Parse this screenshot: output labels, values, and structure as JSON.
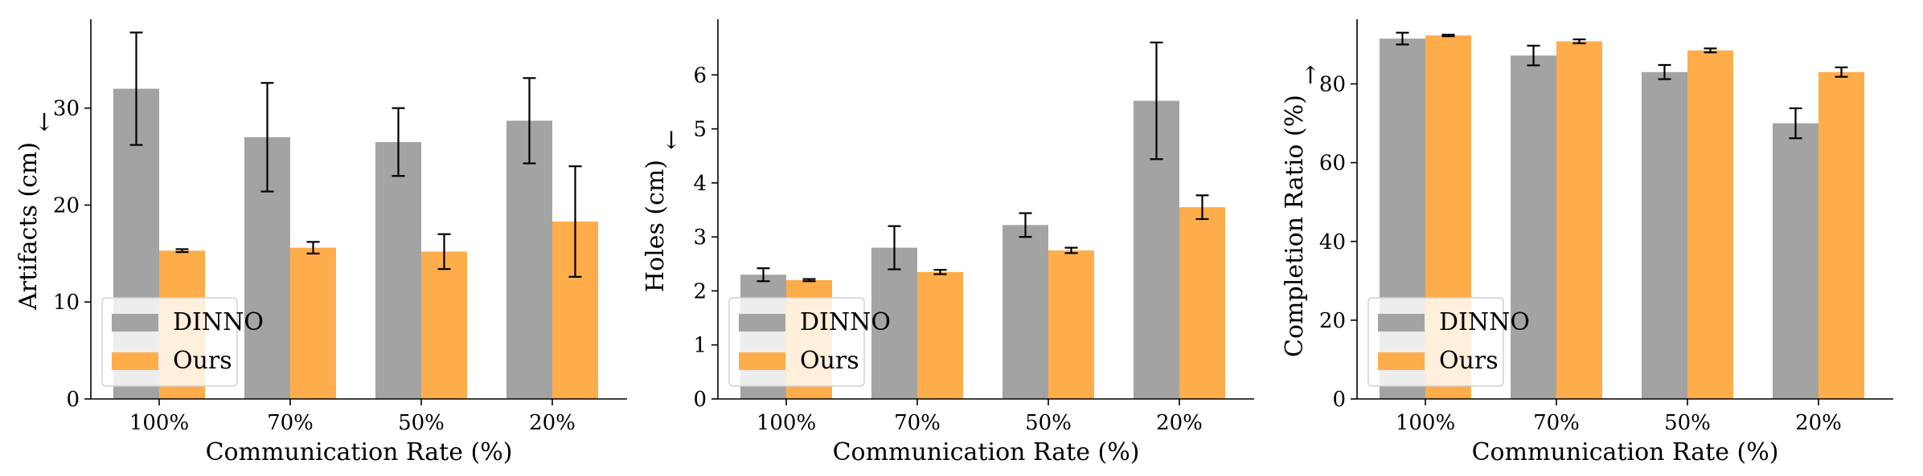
{
  "figure": "three-panel grouped bar chart comparing DINNO and Ours",
  "colors": {
    "DINNO": "#a3a3a3",
    "Ours": "#ffad4a",
    "errorbar": "#000000",
    "axis": "#000000"
  },
  "chart_data": [
    {
      "type": "bar",
      "xlabel": "Communication Rate (%)",
      "ylabel": "Artifacts (cm)",
      "arrow": "↓",
      "categories": [
        "100%",
        "70%",
        "50%",
        "20%"
      ],
      "ylim": [
        0,
        39
      ],
      "yticks": [
        0,
        10,
        20,
        30
      ],
      "legend_position": "lower-left",
      "series": [
        {
          "name": "DINNO",
          "values": [
            32.0,
            27.0,
            26.5,
            28.7
          ],
          "errors": [
            5.8,
            5.6,
            3.5,
            4.4
          ]
        },
        {
          "name": "Ours",
          "values": [
            15.3,
            15.6,
            15.2,
            18.3
          ],
          "errors": [
            0.15,
            0.6,
            1.8,
            5.7
          ]
        }
      ]
    },
    {
      "type": "bar",
      "xlabel": "Communication Rate (%)",
      "ylabel": "Holes (cm)",
      "arrow": "↓",
      "categories": [
        "100%",
        "70%",
        "50%",
        "20%"
      ],
      "ylim": [
        0,
        7
      ],
      "yticks": [
        0,
        1,
        2,
        3,
        4,
        5,
        6
      ],
      "legend_position": "lower-left",
      "series": [
        {
          "name": "DINNO",
          "values": [
            2.3,
            2.8,
            3.22,
            5.52
          ],
          "errors": [
            0.12,
            0.4,
            0.22,
            1.08
          ]
        },
        {
          "name": "Ours",
          "values": [
            2.2,
            2.35,
            2.75,
            3.55
          ],
          "errors": [
            0.02,
            0.04,
            0.05,
            0.22
          ]
        }
      ]
    },
    {
      "type": "bar",
      "xlabel": "Communication Rate (%)",
      "ylabel": "Completion Ratio (%)",
      "arrow": "↑",
      "categories": [
        "100%",
        "70%",
        "50%",
        "20%"
      ],
      "ylim": [
        0,
        96
      ],
      "yticks": [
        0,
        20,
        40,
        60,
        80
      ],
      "legend_position": "lower-left",
      "series": [
        {
          "name": "DINNO",
          "values": [
            91.5,
            87.2,
            83.0,
            70.0
          ],
          "errors": [
            1.5,
            2.5,
            1.8,
            3.8
          ]
        },
        {
          "name": "Ours",
          "values": [
            92.3,
            90.8,
            88.5,
            83.0
          ],
          "errors": [
            0.2,
            0.5,
            0.5,
            1.2
          ]
        }
      ]
    }
  ]
}
